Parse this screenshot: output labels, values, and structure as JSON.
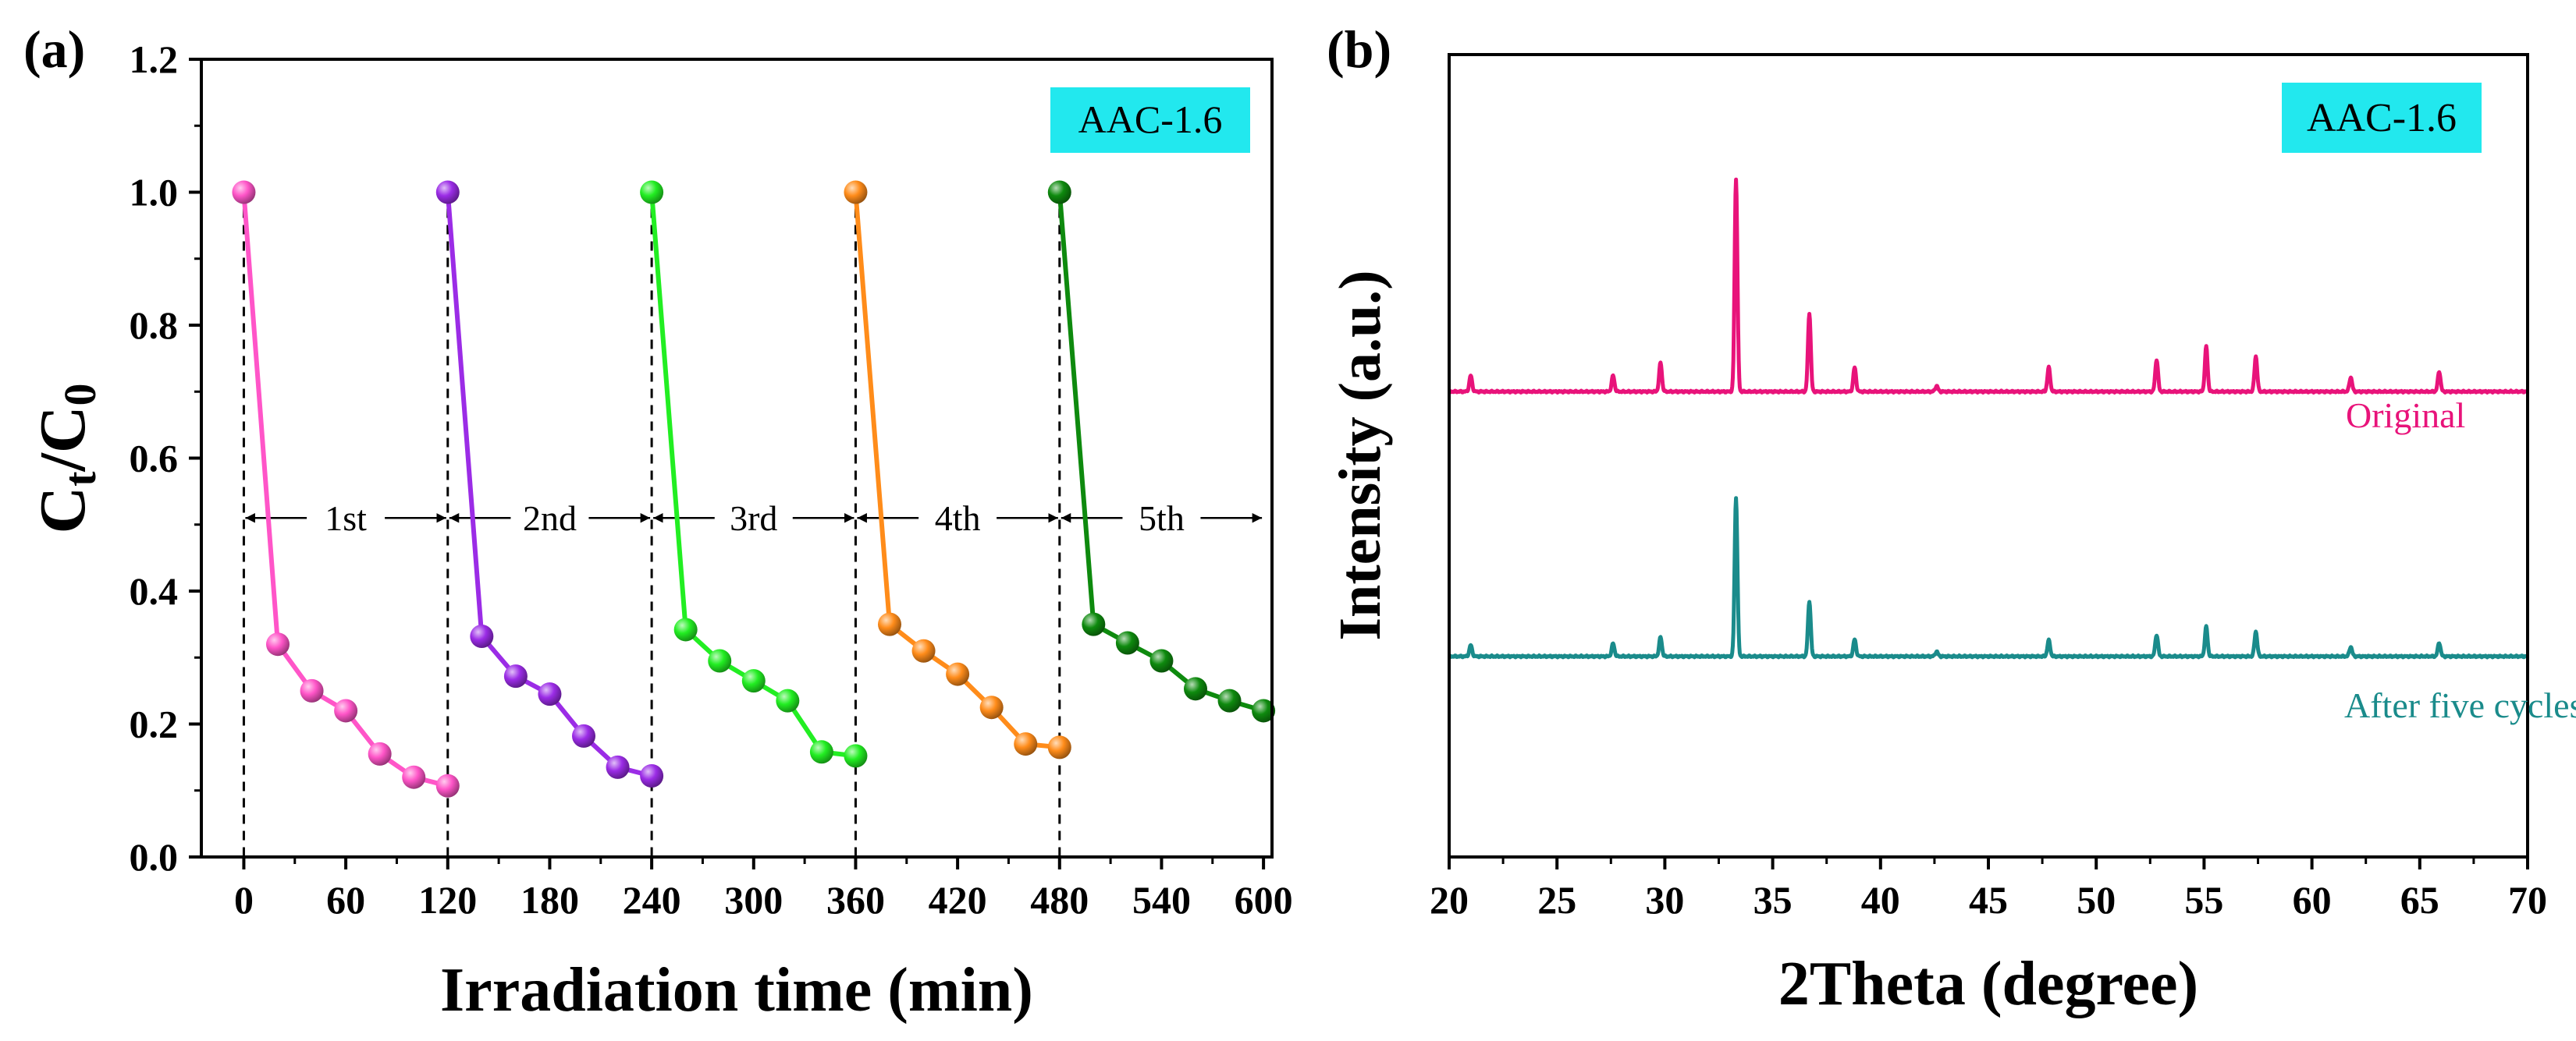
{
  "chart_data": [
    {
      "type": "line",
      "panel_label": "(a)",
      "badge": "AAC-1.6",
      "xlabel": "Irradiation time (min)",
      "ylabel": {
        "main": "C",
        "sub1": "t",
        "mid": "/C",
        "sub2": "0"
      },
      "xlim": [
        -25,
        605
      ],
      "ylim": [
        0,
        1.2
      ],
      "xticks": [
        0,
        60,
        120,
        180,
        240,
        300,
        360,
        420,
        480,
        540,
        600
      ],
      "yticks": [
        0.0,
        0.2,
        0.4,
        0.6,
        0.8,
        1.0,
        1.2
      ],
      "ytick_labels": [
        "0.0",
        "0.2",
        "0.4",
        "0.6",
        "0.8",
        "1.0",
        "1.2"
      ],
      "cycle_boundaries": [
        0,
        120,
        240,
        360,
        480
      ],
      "cycle_arrow_y": 0.51,
      "cycle_segments": [
        [
          0,
          120
        ],
        [
          120,
          240
        ],
        [
          240,
          360
        ],
        [
          360,
          480
        ],
        [
          480,
          600
        ]
      ],
      "cycle_labels": [
        "1st",
        "2nd",
        "3rd",
        "4th",
        "5th"
      ],
      "series": [
        {
          "name": "1st",
          "color": "#ff55c8",
          "x": [
            0,
            20,
            40,
            60,
            80,
            100,
            120
          ],
          "y": [
            1.0,
            0.32,
            0.25,
            0.22,
            0.155,
            0.12,
            0.107
          ]
        },
        {
          "name": "2nd",
          "color": "#9b2ce6",
          "x": [
            120,
            140,
            160,
            180,
            200,
            220,
            240
          ],
          "y": [
            1.0,
            0.332,
            0.272,
            0.245,
            0.182,
            0.135,
            0.122
          ]
        },
        {
          "name": "3rd",
          "color": "#22ee22",
          "x": [
            240,
            260,
            280,
            300,
            320,
            340,
            360
          ],
          "y": [
            1.0,
            0.342,
            0.295,
            0.265,
            0.235,
            0.158,
            0.152
          ]
        },
        {
          "name": "4th",
          "color": "#ff8c1a",
          "x": [
            360,
            380,
            400,
            420,
            440,
            460,
            480
          ],
          "y": [
            1.0,
            0.35,
            0.31,
            0.275,
            0.225,
            0.17,
            0.165
          ]
        },
        {
          "name": "5th",
          "color": "#0e8a0e",
          "x": [
            480,
            500,
            520,
            540,
            560,
            580,
            600
          ],
          "y": [
            1.0,
            0.35,
            0.322,
            0.295,
            0.253,
            0.235,
            0.22
          ]
        }
      ]
    },
    {
      "type": "line",
      "panel_label": "(b)",
      "badge": "AAC-1.6",
      "xlabel": "2Theta (degree)",
      "ylabel": "Intensity (a.u.)",
      "xlim": [
        20,
        70
      ],
      "xticks": [
        20,
        25,
        30,
        35,
        40,
        45,
        50,
        55,
        60,
        65,
        70
      ],
      "intensity_range": [
        0,
        100
      ],
      "series": [
        {
          "name": "Original",
          "label": "Original",
          "color": "#e8137a",
          "baseline": 58,
          "peaks": [
            {
              "two_theta": 21.0,
              "height": 2.0
            },
            {
              "two_theta": 27.6,
              "height": 2.0
            },
            {
              "two_theta": 29.8,
              "height": 3.6
            },
            {
              "two_theta": 33.3,
              "height": 26.5
            },
            {
              "two_theta": 36.7,
              "height": 9.8
            },
            {
              "two_theta": 38.8,
              "height": 3.0
            },
            {
              "two_theta": 42.6,
              "height": 0.7
            },
            {
              "two_theta": 47.8,
              "height": 3.0
            },
            {
              "two_theta": 52.8,
              "height": 4.0
            },
            {
              "two_theta": 55.1,
              "height": 5.6
            },
            {
              "two_theta": 57.4,
              "height": 4.4
            },
            {
              "two_theta": 61.8,
              "height": 1.8
            },
            {
              "two_theta": 65.9,
              "height": 2.5
            }
          ]
        },
        {
          "name": "After five cycles",
          "label": "After five cycles",
          "color": "#1a8b8b",
          "baseline": 25,
          "peaks": [
            {
              "two_theta": 21.0,
              "height": 1.4
            },
            {
              "two_theta": 27.6,
              "height": 1.6
            },
            {
              "two_theta": 29.8,
              "height": 2.4
            },
            {
              "two_theta": 33.3,
              "height": 19.8
            },
            {
              "two_theta": 36.7,
              "height": 6.9
            },
            {
              "two_theta": 38.8,
              "height": 2.1
            },
            {
              "two_theta": 42.6,
              "height": 0.6
            },
            {
              "two_theta": 47.8,
              "height": 2.0
            },
            {
              "two_theta": 52.8,
              "height": 2.7
            },
            {
              "two_theta": 55.1,
              "height": 3.7
            },
            {
              "two_theta": 57.4,
              "height": 3.1
            },
            {
              "two_theta": 61.8,
              "height": 1.2
            },
            {
              "two_theta": 65.9,
              "height": 1.7
            }
          ]
        }
      ]
    }
  ],
  "colors": {
    "badge_bg": "#22e8ee",
    "axis": "#000000",
    "background": "#ffffff"
  }
}
